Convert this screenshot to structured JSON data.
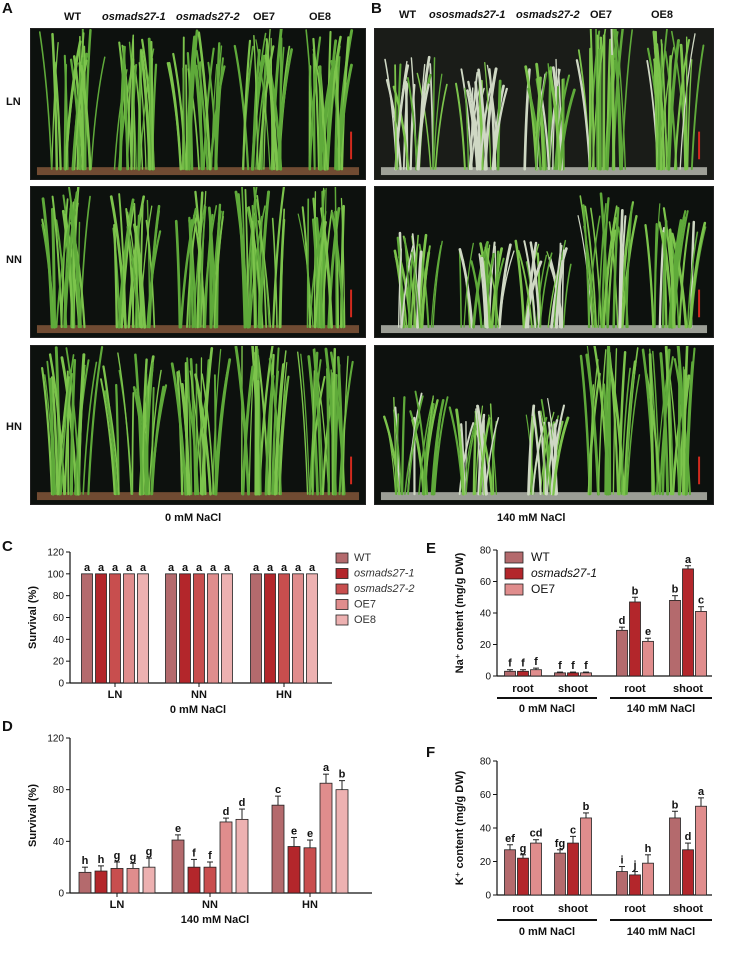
{
  "panels": {
    "A": "A",
    "B": "B",
    "C": "C",
    "D": "D",
    "E": "E",
    "F": "F"
  },
  "photo_headers_A": [
    "WT",
    "osmads27-1",
    "osmads27-2",
    "OE7",
    "OE8"
  ],
  "photo_headers_B": [
    "WT",
    "ososmads27-1",
    "osmads27-2",
    "OE7",
    "OE8"
  ],
  "row_labels": [
    "LN",
    "NN",
    "HN"
  ],
  "photo_conditions": {
    "A": "0 mM NaCl",
    "B": "140 mM NaCl"
  },
  "colors": {
    "WT": "#b46a6d",
    "osmads27-1": "#b3262b",
    "osmads27-2": "#c84e4e",
    "OE7": "#e08d8d",
    "OE8": "#edb1b1",
    "plant": "#5faa3a",
    "photo_bg": "#0d110e",
    "scale_bar": "#d22a1e"
  },
  "chart_data": [
    {
      "id": "C",
      "type": "bar",
      "categories": [
        "LN",
        "NN",
        "HN"
      ],
      "xlabel": "0 mM NaCl",
      "ylabel": "Survival (%)",
      "ylim": [
        0,
        120
      ],
      "yticks": [
        "0",
        "20",
        "40",
        "60",
        "80",
        "100",
        "120"
      ],
      "series": [
        {
          "name": "WT",
          "values": [
            100,
            100,
            100
          ],
          "errors": [
            0,
            0,
            0
          ],
          "letters": [
            "a",
            "a",
            "a"
          ]
        },
        {
          "name": "osmads27-1",
          "values": [
            100,
            100,
            100
          ],
          "errors": [
            0,
            0,
            0
          ],
          "letters": [
            "a",
            "a",
            "a"
          ]
        },
        {
          "name": "osmads27-2",
          "values": [
            100,
            100,
            100
          ],
          "errors": [
            0,
            0,
            0
          ],
          "letters": [
            "a",
            "a",
            "a"
          ]
        },
        {
          "name": "OE7",
          "values": [
            100,
            100,
            100
          ],
          "errors": [
            0,
            0,
            0
          ],
          "letters": [
            "a",
            "a",
            "a"
          ]
        },
        {
          "name": "OE8",
          "values": [
            100,
            100,
            100
          ],
          "errors": [
            0,
            0,
            0
          ],
          "letters": [
            "a",
            "a",
            "a"
          ]
        }
      ],
      "legend": "right"
    },
    {
      "id": "D",
      "type": "bar",
      "categories": [
        "LN",
        "NN",
        "HN"
      ],
      "xlabel": "140 mM NaCl",
      "ylabel": "Survival (%)",
      "ylim": [
        0,
        120
      ],
      "yticks": [
        "0",
        "40",
        "80",
        "120"
      ],
      "series": [
        {
          "name": "WT",
          "values": [
            16,
            41,
            68
          ],
          "errors": [
            4,
            4,
            7
          ],
          "letters": [
            "h",
            "e",
            "c"
          ]
        },
        {
          "name": "osmads27-1",
          "values": [
            17,
            20,
            36
          ],
          "errors": [
            4,
            6,
            7
          ],
          "letters": [
            "h",
            "f",
            "e"
          ]
        },
        {
          "name": "osmads27-2",
          "values": [
            19,
            20,
            35
          ],
          "errors": [
            5,
            4,
            6
          ],
          "letters": [
            "g",
            "f",
            "e"
          ]
        },
        {
          "name": "OE7",
          "values": [
            19,
            55,
            85
          ],
          "errors": [
            4,
            3,
            7
          ],
          "letters": [
            "g",
            "d",
            "a"
          ]
        },
        {
          "name": "OE8",
          "values": [
            20,
            57,
            80
          ],
          "errors": [
            7,
            8,
            7
          ],
          "letters": [
            "g",
            "d",
            "b"
          ]
        }
      ]
    },
    {
      "id": "E",
      "type": "bar",
      "categories": [
        "root",
        "shoot",
        "root",
        "shoot"
      ],
      "groups": [
        "0 mM NaCl",
        "140 mM NaCl"
      ],
      "ylabel": "Na⁺ content (mg/g DW)",
      "ylim": [
        0,
        80
      ],
      "yticks": [
        "0",
        "20",
        "40",
        "60",
        "80"
      ],
      "series": [
        {
          "name": "WT",
          "values": [
            3,
            2,
            29,
            48
          ],
          "errors": [
            1,
            0.5,
            2,
            3
          ],
          "letters": [
            "f",
            "f",
            "d",
            "b"
          ]
        },
        {
          "name": "osmads27-1",
          "values": [
            3,
            2,
            47,
            68
          ],
          "errors": [
            1,
            0.5,
            3,
            2
          ],
          "letters": [
            "f",
            "f",
            "b",
            "a"
          ]
        },
        {
          "name": "OE7",
          "values": [
            4,
            2,
            22,
            41
          ],
          "errors": [
            1,
            0.5,
            2,
            3
          ],
          "letters": [
            "f",
            "f",
            "e",
            "c"
          ]
        }
      ],
      "legend": "top-left"
    },
    {
      "id": "F",
      "type": "bar",
      "categories": [
        "root",
        "shoot",
        "root",
        "shoot"
      ],
      "groups": [
        "0 mM NaCl",
        "140 mM NaCl"
      ],
      "ylabel": "K⁺ content (mg/g DW)",
      "ylim": [
        0,
        80
      ],
      "yticks": [
        "0",
        "20",
        "40",
        "60",
        "80"
      ],
      "series": [
        {
          "name": "WT",
          "values": [
            27,
            25,
            14,
            46
          ],
          "errors": [
            3,
            2,
            3,
            4
          ],
          "letters": [
            "ef",
            "fg",
            "i",
            "b"
          ]
        },
        {
          "name": "osmads27-1",
          "values": [
            22,
            31,
            12,
            27
          ],
          "errors": [
            2,
            4,
            2,
            4
          ],
          "letters": [
            "g",
            "c",
            "j",
            "d"
          ]
        },
        {
          "name": "OE7",
          "values": [
            31,
            46,
            19,
            53
          ],
          "errors": [
            2,
            3,
            5,
            5
          ],
          "letters": [
            "cd",
            "b",
            "h",
            "a"
          ]
        }
      ]
    }
  ]
}
